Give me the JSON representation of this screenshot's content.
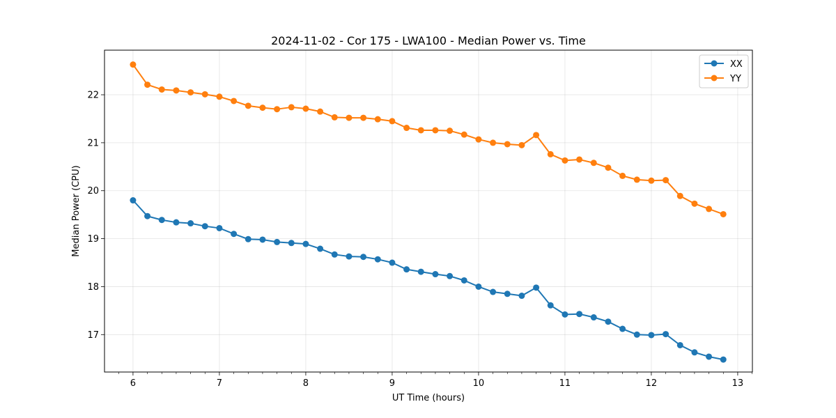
{
  "chart_data": {
    "type": "line",
    "title": "2024-11-02 - Cor 175 - LWA100 - Median Power vs. Time",
    "xlabel": "UT Time (hours)",
    "ylabel": "Median Power (CPU)",
    "xlim": [
      5.67,
      13.17
    ],
    "ylim": [
      16.22,
      22.93
    ],
    "xticks": [
      6,
      7,
      8,
      9,
      10,
      11,
      12,
      13
    ],
    "yticks": [
      17,
      18,
      19,
      20,
      21,
      22
    ],
    "grid": true,
    "legend_position": "top-right",
    "x": [
      6.0,
      6.1667,
      6.3333,
      6.5,
      6.6667,
      6.8333,
      7.0,
      7.1667,
      7.3333,
      7.5,
      7.6667,
      7.8333,
      8.0,
      8.1667,
      8.3333,
      8.5,
      8.6667,
      8.8333,
      9.0,
      9.1667,
      9.3333,
      9.5,
      9.6667,
      9.8333,
      10.0,
      10.1667,
      10.3333,
      10.5,
      10.6667,
      10.8333,
      11.0,
      11.1667,
      11.3333,
      11.5,
      11.6667,
      11.8333,
      12.0,
      12.1667,
      12.3333,
      12.5,
      12.6667,
      12.8333
    ],
    "series": [
      {
        "name": "XX",
        "color": "#1f77b4",
        "values": [
          19.8,
          19.47,
          19.39,
          19.34,
          19.32,
          19.26,
          19.22,
          19.1,
          18.99,
          18.98,
          18.93,
          18.91,
          18.89,
          18.79,
          18.67,
          18.63,
          18.62,
          18.57,
          18.5,
          18.36,
          18.31,
          18.26,
          18.22,
          18.13,
          18.0,
          17.89,
          17.85,
          17.81,
          17.98,
          17.61,
          17.42,
          17.43,
          17.36,
          17.27,
          17.12,
          17.0,
          16.99,
          17.01,
          16.78,
          16.63,
          16.54,
          16.48
        ]
      },
      {
        "name": "YY",
        "color": "#ff7f0e",
        "values": [
          22.63,
          22.21,
          22.11,
          22.09,
          22.05,
          22.01,
          21.96,
          21.87,
          21.77,
          21.73,
          21.7,
          21.74,
          21.71,
          21.65,
          21.53,
          21.52,
          21.52,
          21.49,
          21.45,
          21.31,
          21.26,
          21.26,
          21.25,
          21.17,
          21.07,
          21.0,
          20.97,
          20.95,
          21.16,
          20.76,
          20.63,
          20.65,
          20.58,
          20.48,
          20.31,
          20.23,
          20.21,
          20.22,
          19.89,
          19.73,
          19.62,
          19.51
        ]
      }
    ]
  }
}
